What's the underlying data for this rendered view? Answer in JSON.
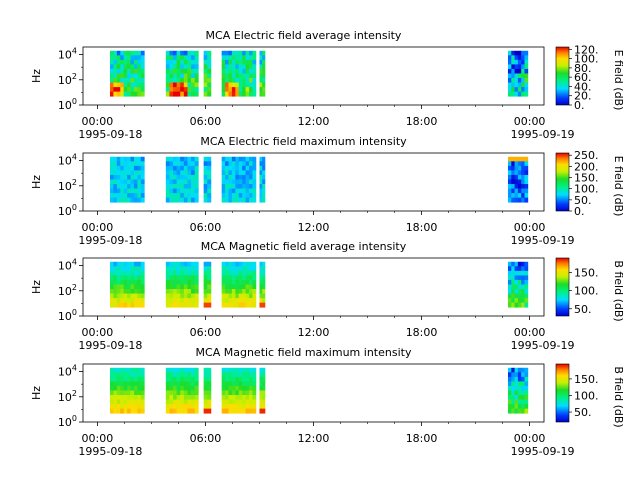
{
  "chart_data": [
    {
      "type": "heatmap",
      "title": "MCA  Electric field average intensity",
      "ylabel": "Hz",
      "colorbar_label": "E field (dB)",
      "colorbar_range": [
        0,
        125
      ],
      "colorbar_ticks": [
        "0.",
        "20.",
        "40.",
        "60.",
        "80.",
        "100.",
        "120."
      ],
      "yticks": [
        "10^0",
        "10^2",
        "10^4"
      ],
      "xticks": [
        "00:00",
        "06:00",
        "12:00",
        "18:00",
        "00:00"
      ],
      "xdates": [
        "1995-09-18",
        "1995-09-19"
      ],
      "x_range_hours": [
        -0.8,
        24.8
      ],
      "y_range_log10": [
        0,
        4.6
      ],
      "data_intervals_hours": [
        [
          0.7,
          2.6
        ],
        [
          3.8,
          5.6
        ],
        [
          5.9,
          6.3
        ],
        [
          6.9,
          8.8
        ],
        [
          9.0,
          9.3
        ],
        [
          22.8,
          23.9
        ]
      ],
      "level": "mid"
    },
    {
      "type": "heatmap",
      "title": "MCA  Electric field maximum intensity",
      "ylabel": "Hz",
      "colorbar_label": "E field (dB)",
      "colorbar_range": [
        0,
        260
      ],
      "colorbar_ticks": [
        "0.",
        "50.",
        "100.",
        "150.",
        "200.",
        "250."
      ],
      "yticks": [
        "10^0",
        "10^2",
        "10^4"
      ],
      "xticks": [
        "00:00",
        "06:00",
        "12:00",
        "18:00",
        "00:00"
      ],
      "xdates": [
        "1995-09-18",
        "1995-09-19"
      ],
      "x_range_hours": [
        -0.8,
        24.8
      ],
      "y_range_log10": [
        0,
        4.6
      ],
      "data_intervals_hours": [
        [
          0.7,
          2.6
        ],
        [
          3.8,
          5.6
        ],
        [
          5.9,
          6.3
        ],
        [
          6.9,
          8.8
        ],
        [
          9.0,
          9.3
        ],
        [
          22.8,
          23.9
        ]
      ],
      "level": "low"
    },
    {
      "type": "heatmap",
      "title": "MCA  Magnetic field average intensity",
      "ylabel": "Hz",
      "colorbar_label": "B field (dB)",
      "colorbar_range": [
        30,
        190
      ],
      "colorbar_ticks": [
        "50.",
        "100.",
        "150."
      ],
      "yticks": [
        "10^0",
        "10^2",
        "10^4"
      ],
      "xticks": [
        "00:00",
        "06:00",
        "12:00",
        "18:00",
        "00:00"
      ],
      "xdates": [
        "1995-09-18",
        "1995-09-19"
      ],
      "x_range_hours": [
        -0.8,
        24.8
      ],
      "y_range_log10": [
        0,
        4.6
      ],
      "data_intervals_hours": [
        [
          0.7,
          2.6
        ],
        [
          3.8,
          5.6
        ],
        [
          5.9,
          6.3
        ],
        [
          6.9,
          8.8
        ],
        [
          9.0,
          9.3
        ],
        [
          22.8,
          23.9
        ]
      ],
      "level": "magavg"
    },
    {
      "type": "heatmap",
      "title": "MCA  Magnetic field maximum intensity",
      "ylabel": "Hz",
      "colorbar_label": "B field (dB)",
      "colorbar_range": [
        20,
        195
      ],
      "colorbar_ticks": [
        "50.",
        "100.",
        "150."
      ],
      "yticks": [
        "10^0",
        "10^2",
        "10^4"
      ],
      "xticks": [
        "00:00",
        "06:00",
        "12:00",
        "18:00",
        "00:00"
      ],
      "xdates": [
        "1995-09-18",
        "1995-09-19"
      ],
      "x_range_hours": [
        -0.8,
        24.8
      ],
      "y_range_log10": [
        0,
        4.6
      ],
      "data_intervals_hours": [
        [
          0.7,
          2.6
        ],
        [
          3.8,
          5.6
        ],
        [
          5.9,
          6.3
        ],
        [
          6.9,
          8.8
        ],
        [
          9.0,
          9.3
        ],
        [
          22.8,
          23.9
        ]
      ],
      "level": "magmax"
    }
  ]
}
